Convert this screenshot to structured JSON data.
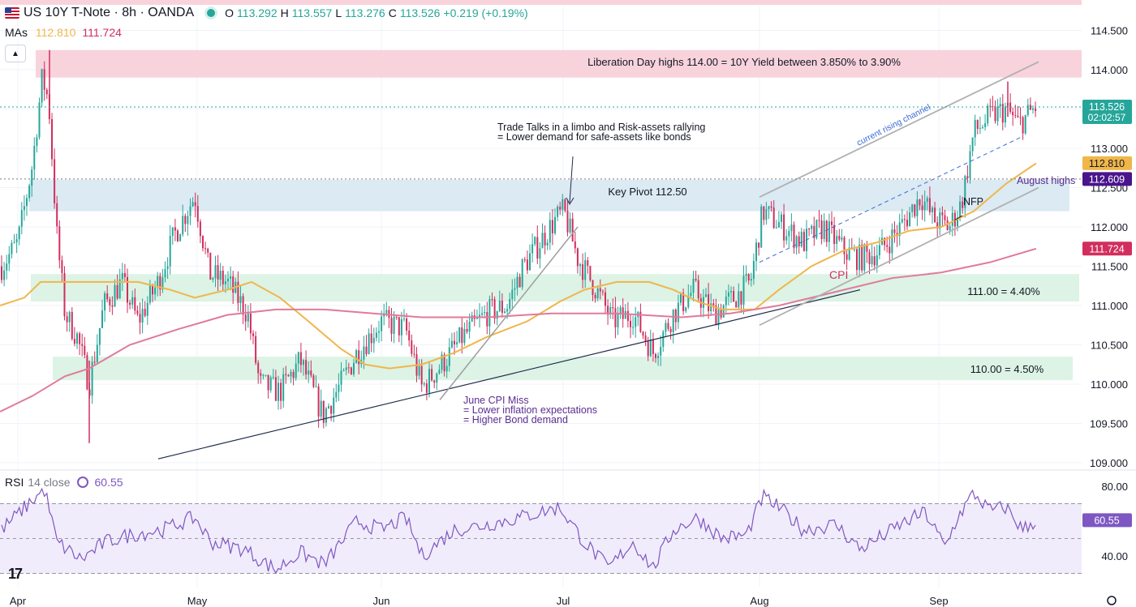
{
  "header": {
    "title": "US 10Y T-Note · 8h · OANDA",
    "open_label": "O",
    "open": "113.292",
    "high_label": "H",
    "high": "113.557",
    "low_label": "L",
    "low": "113.276",
    "close_label": "C",
    "close": "113.526",
    "change": "+0.219 (+0.19%)"
  },
  "mas": {
    "label": "MAs",
    "ma1": "112.810",
    "ma2": "111.724"
  },
  "rsi": {
    "label": "RSI",
    "params": "14 close",
    "value": "60.55"
  },
  "colors": {
    "up": "#26a69a",
    "down": "#d12e5d",
    "ma_fast": "#f0b64a",
    "ma_slow": "#e07b9a",
    "rsi_line": "#7e57c2",
    "zone_red": "#f9d3dc",
    "zone_blue": "#dbeaf3",
    "zone_green": "#dcf3e6"
  },
  "chart_data": {
    "type": "candlestick",
    "title": "US 10Y T-Note · 8h · OANDA",
    "ylim": [
      108.95,
      114.65
    ],
    "y_ticks": [
      "114.500",
      "114.000",
      "113.000",
      "112.500",
      "112.000",
      "111.500",
      "111.000",
      "110.500",
      "110.000",
      "109.500",
      "109.000"
    ],
    "x_ticks": [
      "Apr",
      "May",
      "Jun",
      "Jul",
      "Aug",
      "Sep"
    ],
    "price_labels": [
      {
        "value": 113.526,
        "text": "113.526",
        "sub": "02:02:57",
        "color": "#26a69a"
      },
      {
        "value": 112.81,
        "text": "112.810",
        "color": "#f0b64a"
      },
      {
        "value": 112.609,
        "text": "112.609",
        "color": "#4a148c"
      },
      {
        "value": 111.724,
        "text": "111.724",
        "color": "#d12e5d"
      }
    ],
    "zones": [
      {
        "name": "liberation-day-zone",
        "from": 113.9,
        "to": 114.25,
        "color": "zone_red",
        "label": "Liberation Day highs 114.00 = 10Y Yield between 3.850% to 3.90%"
      },
      {
        "name": "key-pivot-zone",
        "from": 112.2,
        "to": 112.6,
        "color": "zone_blue",
        "label": "Key Pivot 112.50"
      },
      {
        "name": "111-zone",
        "from": 111.05,
        "to": 111.4,
        "color": "zone_green",
        "label": "111.00 = 4.40%"
      },
      {
        "name": "110-zone",
        "from": 110.05,
        "to": 110.35,
        "color": "zone_green",
        "label": "110.00 = 4.50%"
      }
    ],
    "annotations": {
      "trade_talks": [
        "Trade Talks in a limbo and Risk-assets rallying",
        "= Lower demand for safe-assets like bonds"
      ],
      "june_cpi": [
        "June CPI Miss",
        "= Lower inflation expectations",
        "= Higher Bond demand"
      ],
      "channel": "current rising channel",
      "august_highs": "August highs",
      "nfp": "NFP",
      "cpi": "CPI"
    },
    "rsi_ticks": [
      "80.00",
      "40.00"
    ],
    "rsi_value": 60.55
  }
}
